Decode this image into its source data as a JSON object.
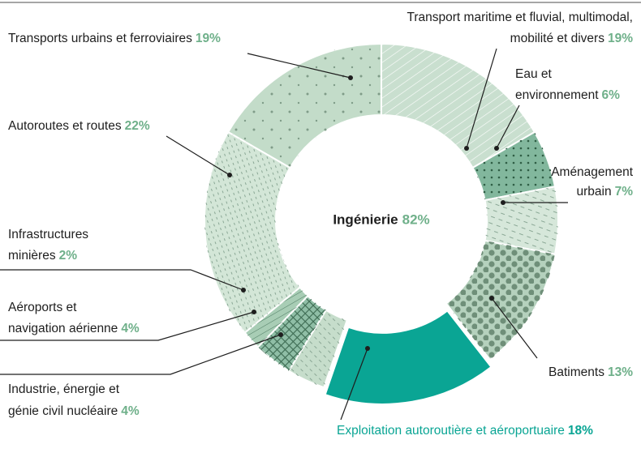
{
  "chart_data": {
    "type": "donut",
    "center_label": "Ingénierie",
    "center_value": 82,
    "center_value_label": "82%",
    "categories": [
      [
        "Transports urbains et ferroviaires"
      ],
      [
        "Transport maritime et fluvial, multimodal,",
        "mobilité et divers"
      ],
      [
        "Eau et",
        "environnement"
      ],
      [
        "Aménagement",
        "urbain"
      ],
      [
        "Batiments"
      ],
      [
        "Exploitation autoroutière et aéroportuaire"
      ],
      [
        "Industrie, énergie et",
        "génie civil nucléaire"
      ],
      [
        "Aéroports et",
        "navigation aérienne"
      ],
      [
        "Infrastructures",
        "minières"
      ],
      [
        "Autoroutes et routes"
      ]
    ],
    "values": [
      19,
      19,
      6,
      7,
      13,
      18,
      4,
      4,
      2,
      22
    ],
    "value_labels": [
      "19%",
      "19%",
      "6%",
      "7%",
      "13%",
      "18%",
      "4%",
      "4%",
      "2%",
      "22%"
    ],
    "colors": [
      "#c3dcc9",
      "#c9dfcf",
      "#82b79d",
      "#d6e7da",
      "#b5d1bd",
      "#0aa594",
      "#c6ddcb",
      "#8fbea6",
      "#a8cdb5",
      "#d3e6d7"
    ]
  }
}
